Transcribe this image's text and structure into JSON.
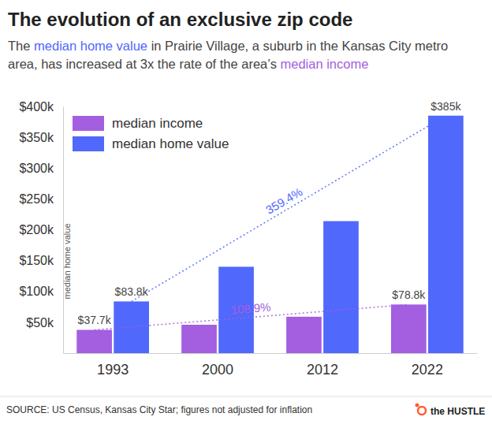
{
  "chart_data": {
    "type": "bar",
    "title": "The evolution of an exclusive zip code",
    "subtitle": "The median home value in Prairie Village, a suburb in the Kansas City metro area, has increased at 3x the rate of the area’s median income",
    "y_label": "median home value",
    "categories": [
      "1993",
      "2000",
      "2012",
      "2022"
    ],
    "series": [
      {
        "name": "median income",
        "color": "#a45ee0",
        "values": [
          37700,
          46000,
          59000,
          78800
        ],
        "value_labels": [
          "$37.7k",
          null,
          null,
          "$78.8k"
        ]
      },
      {
        "name": "median home value",
        "color": "#5068fc",
        "values": [
          83800,
          140000,
          214000,
          385000
        ],
        "value_labels": [
          "$83.8k",
          null,
          null,
          "$385k"
        ]
      }
    ],
    "ylim": [
      0,
      400000
    ],
    "yticks": [
      {
        "value": 50000,
        "label": "$50k"
      },
      {
        "value": 100000,
        "label": "$100k"
      },
      {
        "value": 150000,
        "label": "$150k"
      },
      {
        "value": 200000,
        "label": "$200k"
      },
      {
        "value": 250000,
        "label": "$250k"
      },
      {
        "value": 300000,
        "label": "$300k"
      },
      {
        "value": 350000,
        "label": "$350k"
      },
      {
        "value": 400000,
        "label": "$400k"
      }
    ],
    "grid": false,
    "legend": "top-left",
    "data_labels": true,
    "annotations": [
      {
        "text": "359.4%",
        "series": "median home value"
      },
      {
        "text": "108.9%",
        "series": "median income"
      }
    ],
    "source": "SOURCE: US Census, Kansas City Star; figures not adjusted for inflation",
    "brand": "the HUSTLE"
  }
}
